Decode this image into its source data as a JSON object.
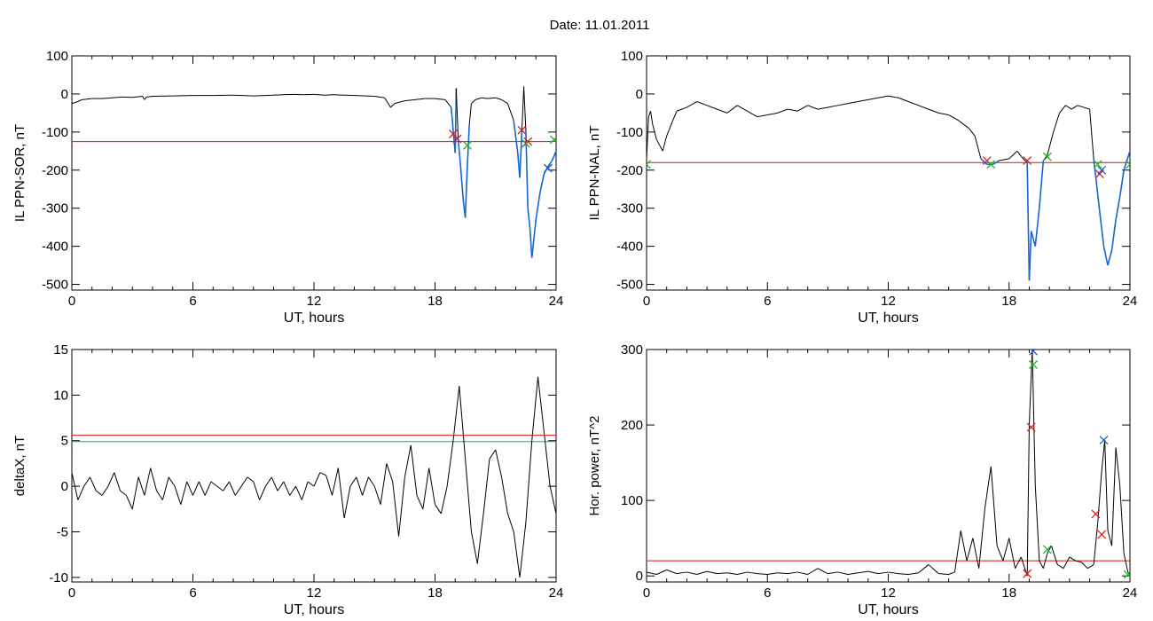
{
  "figure_title": "Date:  11.01.2011",
  "colors": {
    "trace": "#000000",
    "below_threshold": "#1565d6",
    "threshold_red": "#e01010",
    "threshold_cyan": "#1a9fa0",
    "marker_red": "#d42020",
    "marker_green": "#22b422",
    "marker_blue": "#1a5ec8",
    "axis": "#000000"
  },
  "chart_data": [
    {
      "type": "line",
      "ylabel": "IL PPN-SOR, nT",
      "xlabel": "UT, hours",
      "xlim": [
        0,
        24
      ],
      "xticks": [
        0,
        6,
        12,
        18,
        24
      ],
      "xtick_labels": [
        "0",
        "6",
        "12",
        "18",
        "24"
      ],
      "ylim": [
        -515,
        100
      ],
      "yticks": [
        100,
        0,
        -100,
        -200,
        -300,
        -400,
        -500
      ],
      "ytick_labels": [
        "100",
        "0",
        "-100",
        "-200",
        "-300",
        "-400",
        "-500"
      ],
      "thresholds": [
        {
          "y": -125,
          "color": "red"
        }
      ],
      "series": [
        {
          "x": [
            0,
            0.2,
            0.5,
            1,
            1.5,
            2,
            2.5,
            3,
            3.5,
            3.6,
            3.7,
            4,
            5,
            6,
            7,
            8,
            9,
            10,
            10.5,
            11,
            11.5,
            12,
            12.5,
            13,
            14,
            15,
            15.5,
            15.8,
            16,
            16.5,
            17,
            17.5,
            18,
            18.5,
            18.8,
            19,
            19.05,
            19.15,
            19.25,
            19.4,
            19.5,
            19.6,
            19.7,
            19.8,
            20,
            20.3,
            20.6,
            21,
            21.3,
            21.6,
            21.9,
            22.1,
            22.2,
            22.3,
            22.4,
            22.5,
            22.6,
            22.7,
            22.8,
            23.0,
            23.2,
            23.4,
            23.6,
            23.8,
            24
          ],
          "y": [
            -25,
            -22,
            -15,
            -12,
            -12,
            -10,
            -8,
            -9,
            -6,
            -15,
            -8,
            -6,
            -5,
            -4,
            -4,
            -3,
            -5,
            -3,
            -2,
            -1,
            -2,
            -1,
            -3,
            -2,
            -4,
            -6,
            -10,
            -35,
            -25,
            -18,
            -15,
            -12,
            -12,
            -15,
            -35,
            -155,
            15,
            -120,
            -180,
            -280,
            -325,
            -190,
            -80,
            -25,
            -15,
            -10,
            -12,
            -10,
            -15,
            -25,
            -70,
            -155,
            -220,
            -100,
            20,
            -95,
            -300,
            -350,
            -430,
            -330,
            -260,
            -210,
            -190,
            -175,
            -150
          ]
        }
      ],
      "markers": [
        {
          "x": 18.9,
          "y": -105,
          "color": "red"
        },
        {
          "x": 19.1,
          "y": -118,
          "color": "red"
        },
        {
          "x": 19.6,
          "y": -135,
          "color": "green"
        },
        {
          "x": 22.3,
          "y": -95,
          "color": "red"
        },
        {
          "x": 22.5,
          "y": -130,
          "color": "green"
        },
        {
          "x": 22.6,
          "y": -125,
          "color": "red"
        },
        {
          "x": 23.9,
          "y": -120,
          "color": "green"
        },
        {
          "x": 23.6,
          "y": -195,
          "color": "blue"
        }
      ]
    },
    {
      "type": "line",
      "ylabel": "IL PPN-NAL, nT",
      "xlabel": "UT, hours",
      "xlim": [
        0,
        24
      ],
      "xticks": [
        0,
        6,
        12,
        18,
        24
      ],
      "xtick_labels": [
        "0",
        "6",
        "12",
        "18",
        "24"
      ],
      "ylim": [
        -515,
        100
      ],
      "yticks": [
        100,
        0,
        -100,
        -200,
        -300,
        -400,
        -500
      ],
      "ytick_labels": [
        "100",
        "0",
        "-100",
        "-200",
        "-300",
        "-400",
        "-500"
      ],
      "thresholds": [
        {
          "y": -180,
          "color": "red"
        }
      ],
      "series": [
        {
          "x": [
            0,
            0.1,
            0.2,
            0.3,
            0.5,
            0.8,
            1,
            1.3,
            1.5,
            2,
            2.5,
            3,
            3.5,
            4,
            4.5,
            5,
            5.5,
            6,
            6.5,
            7,
            7.5,
            8,
            8.5,
            9,
            9.5,
            10,
            10.5,
            11,
            11.5,
            12,
            12.5,
            13,
            13.5,
            14,
            14.5,
            15,
            15.5,
            16,
            16.3,
            16.6,
            16.9,
            17.2,
            17.5,
            18,
            18.4,
            18.7,
            18.9,
            19.0,
            19.1,
            19.3,
            19.5,
            19.7,
            19.9,
            20.2,
            20.5,
            20.8,
            21.1,
            21.4,
            21.7,
            22,
            22.2,
            22.35,
            22.5,
            22.7,
            22.9,
            23.1,
            23.3,
            23.5,
            23.7,
            24
          ],
          "y": [
            -170,
            -60,
            -45,
            -80,
            -120,
            -150,
            -110,
            -70,
            -45,
            -35,
            -20,
            -30,
            -40,
            -50,
            -30,
            -45,
            -60,
            -55,
            -50,
            -40,
            -45,
            -30,
            -40,
            -35,
            -30,
            -25,
            -20,
            -15,
            -10,
            -5,
            -10,
            -20,
            -30,
            -40,
            -50,
            -55,
            -70,
            -90,
            -110,
            -170,
            -185,
            -185,
            -175,
            -170,
            -150,
            -170,
            -180,
            -490,
            -360,
            -400,
            -300,
            -175,
            -160,
            -100,
            -50,
            -30,
            -40,
            -30,
            -35,
            -40,
            -170,
            -240,
            -310,
            -400,
            -450,
            -410,
            -330,
            -270,
            -200,
            -150
          ]
        }
      ],
      "markers": [
        {
          "x": 16.9,
          "y": -175,
          "color": "red"
        },
        {
          "x": 17.1,
          "y": -185,
          "color": "green"
        },
        {
          "x": 18.9,
          "y": -175,
          "color": "red"
        },
        {
          "x": 19.9,
          "y": -165,
          "color": "green"
        },
        {
          "x": 22.4,
          "y": -185,
          "color": "green"
        },
        {
          "x": 22.5,
          "y": -210,
          "color": "red"
        },
        {
          "x": 22.6,
          "y": -200,
          "color": "blue"
        },
        {
          "x": 24.0,
          "y": -185,
          "color": "green"
        },
        {
          "x": 0.0,
          "y": -185,
          "color": "green"
        }
      ]
    },
    {
      "type": "line",
      "ylabel": "deltaX, nT",
      "xlabel": "UT, hours",
      "xlim": [
        0,
        24
      ],
      "xticks": [
        0,
        6,
        12,
        18,
        24
      ],
      "xtick_labels": [
        "0",
        "6",
        "12",
        "18",
        "24"
      ],
      "ylim": [
        -10.5,
        15
      ],
      "yticks": [
        15,
        10,
        5,
        0,
        -5,
        -10
      ],
      "ytick_labels": [
        "15",
        "10",
        "5",
        "0",
        "-5",
        "-10"
      ],
      "thresholds": [
        {
          "y": 5.6,
          "color": "red"
        },
        {
          "y": 4.9,
          "color": "cyan"
        }
      ],
      "series": [
        {
          "x": [
            0,
            0.3,
            0.6,
            0.9,
            1.2,
            1.5,
            1.8,
            2.1,
            2.4,
            2.7,
            3.0,
            3.3,
            3.6,
            3.9,
            4.2,
            4.5,
            4.8,
            5.1,
            5.4,
            5.7,
            6.0,
            6.3,
            6.6,
            6.9,
            7.2,
            7.5,
            7.8,
            8.1,
            8.4,
            8.7,
            9.0,
            9.3,
            9.6,
            9.9,
            10.2,
            10.5,
            10.8,
            11.1,
            11.4,
            11.7,
            12.0,
            12.3,
            12.6,
            12.9,
            13.2,
            13.5,
            13.8,
            14.1,
            14.4,
            14.7,
            15.0,
            15.3,
            15.6,
            15.9,
            16.2,
            16.5,
            16.8,
            17.1,
            17.4,
            17.7,
            18.0,
            18.3,
            18.6,
            18.9,
            19.2,
            19.5,
            19.8,
            20.1,
            20.4,
            20.7,
            21.0,
            21.3,
            21.6,
            21.9,
            22.2,
            22.5,
            22.8,
            23.1,
            23.4,
            23.7,
            24
          ],
          "y": [
            1.5,
            -1.5,
            0,
            1,
            -0.5,
            -1,
            0,
            1.5,
            -0.5,
            -1,
            -2.5,
            1,
            -1,
            2,
            -0.5,
            -1.5,
            1,
            0,
            -2,
            0.5,
            -1,
            0.5,
            -1,
            0.5,
            0,
            -0.5,
            0.5,
            -1,
            0,
            1,
            0.5,
            -1.5,
            0,
            1,
            -0.5,
            0.5,
            -1,
            0,
            -1.5,
            0.5,
            0,
            1.5,
            1.2,
            -1,
            2,
            -3.5,
            0,
            1,
            -1,
            1,
            0,
            -2,
            2.5,
            0.5,
            -5.5,
            1,
            4.5,
            -1,
            -2.5,
            2,
            -2,
            -3,
            0,
            5,
            11,
            3,
            -5,
            -8.5,
            -3,
            3,
            4,
            1,
            -3,
            -5,
            -10,
            -4,
            5,
            12,
            6,
            0,
            -3
          ]
        }
      ],
      "markers": []
    },
    {
      "type": "line",
      "ylabel": "Hor. power, nT^2",
      "xlabel": "UT, hours",
      "xlim": [
        0,
        24
      ],
      "xticks": [
        0,
        6,
        12,
        18,
        24
      ],
      "xtick_labels": [
        "0",
        "6",
        "12",
        "18",
        "24"
      ],
      "ylim": [
        -8,
        300
      ],
      "yticks": [
        300,
        200,
        100,
        0
      ],
      "ytick_labels": [
        "300",
        "200",
        "100",
        "0"
      ],
      "thresholds": [
        {
          "y": 20,
          "color": "red"
        }
      ],
      "series": [
        {
          "x": [
            0,
            0.5,
            1,
            1.5,
            2,
            2.5,
            3,
            3.5,
            4,
            4.5,
            5,
            5.5,
            6,
            6.5,
            7,
            7.5,
            8,
            8.5,
            9,
            9.5,
            10,
            10.5,
            11,
            11.5,
            12,
            12.5,
            13,
            13.5,
            14,
            14.5,
            15,
            15.3,
            15.6,
            15.9,
            16.2,
            16.5,
            16.8,
            17.1,
            17.4,
            17.7,
            18.0,
            18.3,
            18.6,
            18.9,
            19.0,
            19.15,
            19.3,
            19.5,
            19.7,
            19.9,
            20.1,
            20.4,
            20.7,
            21.0,
            21.3,
            21.6,
            21.9,
            22.2,
            22.4,
            22.6,
            22.75,
            22.9,
            23.1,
            23.3,
            23.5,
            23.7,
            23.9,
            24
          ],
          "y": [
            5,
            2,
            8,
            3,
            5,
            2,
            6,
            3,
            4,
            2,
            5,
            3,
            2,
            4,
            3,
            5,
            2,
            10,
            3,
            5,
            2,
            4,
            6,
            3,
            5,
            3,
            2,
            4,
            15,
            3,
            2,
            5,
            60,
            20,
            50,
            10,
            90,
            145,
            40,
            20,
            50,
            10,
            25,
            0,
            200,
            300,
            120,
            20,
            10,
            30,
            40,
            15,
            10,
            25,
            20,
            18,
            10,
            15,
            70,
            140,
            180,
            60,
            40,
            170,
            120,
            30,
            5,
            2
          ]
        }
      ],
      "markers": [
        {
          "x": 18.9,
          "y": 3,
          "color": "red"
        },
        {
          "x": 19.1,
          "y": 197,
          "color": "red"
        },
        {
          "x": 19.2,
          "y": 280,
          "color": "green"
        },
        {
          "x": 19.2,
          "y": 298,
          "color": "blue"
        },
        {
          "x": 19.9,
          "y": 35,
          "color": "green"
        },
        {
          "x": 22.3,
          "y": 82,
          "color": "red"
        },
        {
          "x": 22.6,
          "y": 55,
          "color": "red"
        },
        {
          "x": 22.7,
          "y": 180,
          "color": "blue"
        },
        {
          "x": 23.9,
          "y": 2,
          "color": "green"
        }
      ]
    }
  ]
}
